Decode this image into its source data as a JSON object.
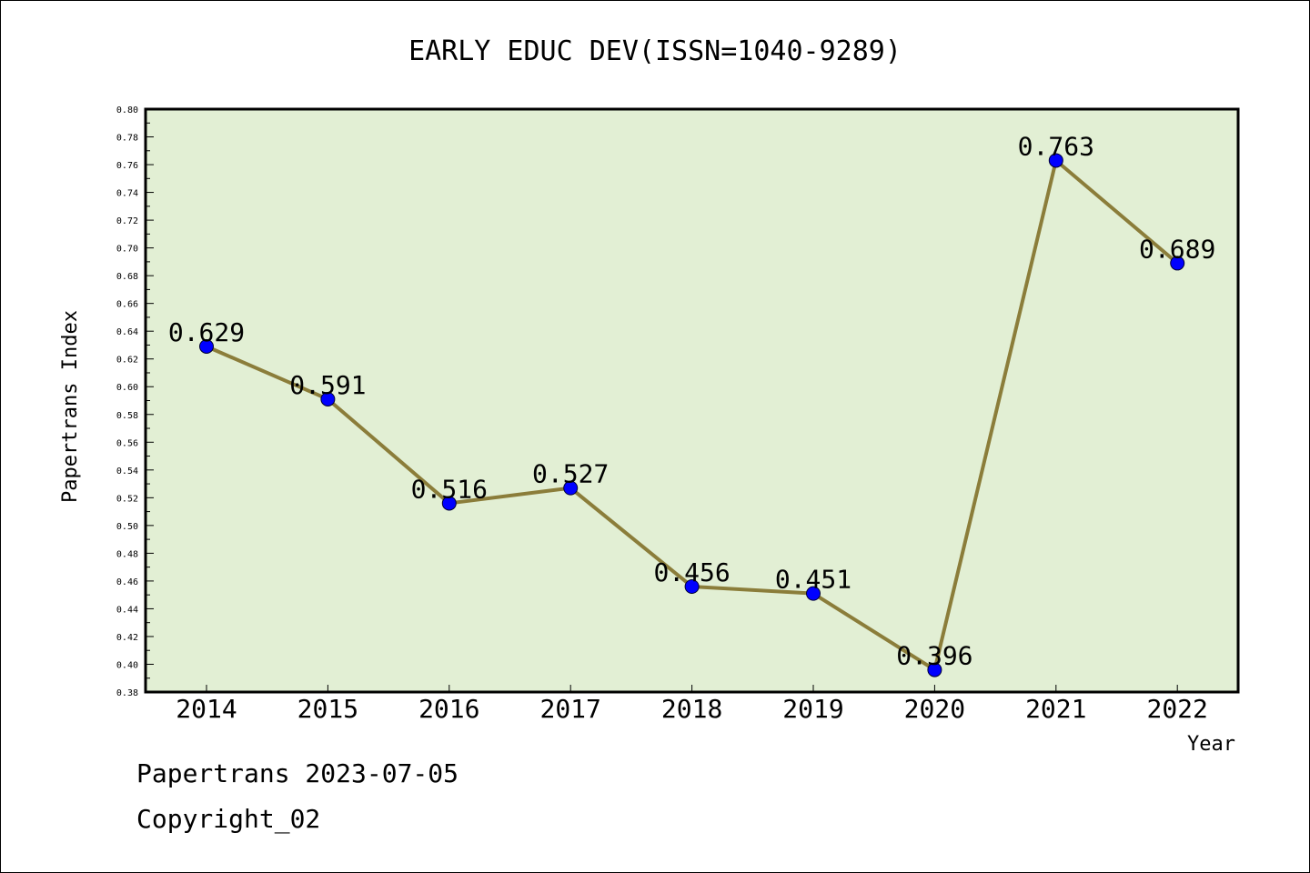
{
  "chart_data": {
    "type": "line",
    "title": "EARLY EDUC DEV(ISSN=1040-9289)",
    "xlabel": "Year",
    "ylabel": "Papertrans Index",
    "categories": [
      "2014",
      "2015",
      "2016",
      "2017",
      "2018",
      "2019",
      "2020",
      "2021",
      "2022"
    ],
    "series": [
      {
        "values": [
          0.629,
          0.591,
          0.516,
          0.527,
          0.456,
          0.451,
          0.396,
          0.763,
          0.689
        ],
        "labels": [
          "0.629",
          "0.591",
          "0.516",
          "0.527",
          "0.456",
          "0.451",
          "0.396",
          "0.763",
          "0.689"
        ]
      }
    ],
    "ylim": [
      0.38,
      0.8
    ],
    "yticks": [
      "0.38",
      "0.40",
      "0.42",
      "0.44",
      "0.46",
      "0.48",
      "0.50",
      "0.52",
      "0.54",
      "0.56",
      "0.58",
      "0.60",
      "0.62",
      "0.64",
      "0.66",
      "0.68",
      "0.70",
      "0.72",
      "0.74",
      "0.76",
      "0.78",
      "0.80"
    ],
    "grid": false,
    "colors": {
      "plot_background": "#e2efd4",
      "line": "#8b7d3a",
      "marker": "#0000ff"
    }
  },
  "footer": {
    "line1": "Papertrans 2023-07-05",
    "line2": "Copyright_02"
  }
}
